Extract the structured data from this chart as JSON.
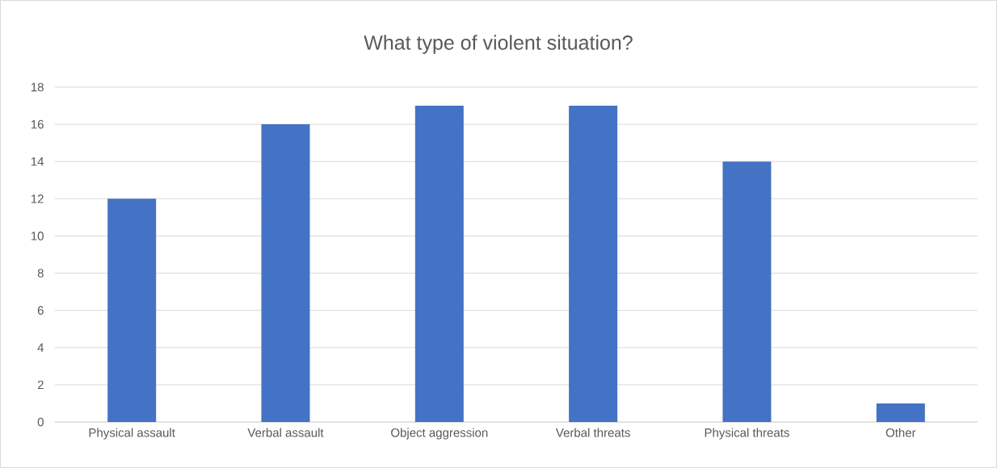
{
  "chart_data": {
    "type": "bar",
    "title": "What type of violent situation?",
    "categories": [
      "Physical assault",
      "Verbal assault",
      "Object aggression",
      "Verbal threats",
      "Physical threats",
      "Other"
    ],
    "values": [
      12,
      16,
      17,
      17,
      14,
      1
    ],
    "color": "#4472c4",
    "ylim": [
      0,
      18
    ],
    "yticks": [
      0,
      2,
      4,
      6,
      8,
      10,
      12,
      14,
      16,
      18
    ],
    "grid": "y"
  }
}
